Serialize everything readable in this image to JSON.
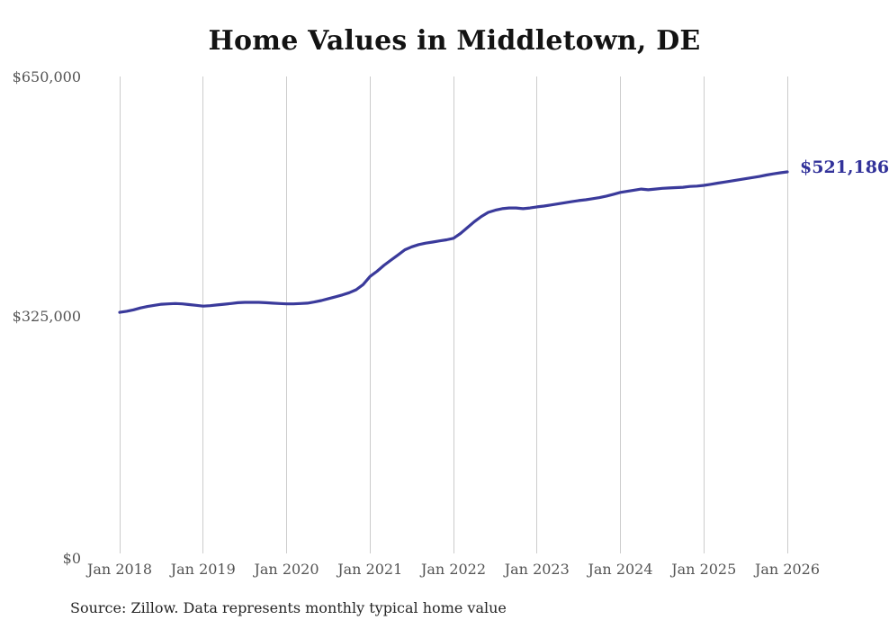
{
  "chart": {
    "title": "Home Values in Middletown, DE",
    "end_label": "$521,186",
    "source_note": "Source: Zillow. Data represents monthly typical home value",
    "colors": {
      "line": "#3a3a9b",
      "end_label_text": "#32329a",
      "grid": "#cccccc",
      "tick_text": "#545454",
      "title_text": "#131313",
      "source_text": "#262626",
      "background": "#ffffff"
    }
  },
  "chart_data": {
    "type": "line",
    "title": "Home Values in Middletown, DE",
    "series_name": "Monthly typical home value (Zillow)",
    "xlabel": "",
    "ylabel": "",
    "x_tick_labels": [
      "Jan 2018",
      "Jan 2019",
      "Jan 2020",
      "Jan 2021",
      "Jan 2022",
      "Jan 2023",
      "Jan 2024",
      "Jan 2025",
      "Jan 2026"
    ],
    "y_tick_labels": [
      "$0",
      "$325,000",
      "$650,000"
    ],
    "ylim": [
      0,
      650000
    ],
    "grid": "vertical-only",
    "legend": "none",
    "final_value": 521186,
    "final_value_label": "$521,186",
    "x": [
      "2018-01",
      "2018-02",
      "2018-03",
      "2018-04",
      "2018-05",
      "2018-06",
      "2018-07",
      "2018-08",
      "2018-09",
      "2018-10",
      "2018-11",
      "2018-12",
      "2019-01",
      "2019-02",
      "2019-03",
      "2019-04",
      "2019-05",
      "2019-06",
      "2019-07",
      "2019-08",
      "2019-09",
      "2019-10",
      "2019-11",
      "2019-12",
      "2020-01",
      "2020-02",
      "2020-03",
      "2020-04",
      "2020-05",
      "2020-06",
      "2020-07",
      "2020-08",
      "2020-09",
      "2020-10",
      "2020-11",
      "2020-12",
      "2021-01",
      "2021-02",
      "2021-03",
      "2021-04",
      "2021-05",
      "2021-06",
      "2021-07",
      "2021-08",
      "2021-09",
      "2021-10",
      "2021-11",
      "2021-12",
      "2022-01",
      "2022-02",
      "2022-03",
      "2022-04",
      "2022-05",
      "2022-06",
      "2022-07",
      "2022-08",
      "2022-09",
      "2022-10",
      "2022-11",
      "2022-12",
      "2023-01",
      "2023-02",
      "2023-03",
      "2023-04",
      "2023-05",
      "2023-06",
      "2023-07",
      "2023-08",
      "2023-09",
      "2023-10",
      "2023-11",
      "2023-12",
      "2024-01",
      "2024-02",
      "2024-03",
      "2024-04",
      "2024-05",
      "2024-06",
      "2024-07",
      "2024-08",
      "2024-09",
      "2024-10",
      "2024-11",
      "2024-12",
      "2025-01",
      "2025-02",
      "2025-03",
      "2025-04",
      "2025-05",
      "2025-06",
      "2025-07",
      "2025-08",
      "2025-09",
      "2025-10",
      "2025-11",
      "2025-12",
      "2026-01"
    ],
    "values": [
      331500,
      333000,
      335000,
      337500,
      339500,
      341000,
      342500,
      343000,
      343500,
      343000,
      342000,
      341000,
      340000,
      340500,
      341500,
      342500,
      343500,
      344500,
      345000,
      345000,
      345000,
      344500,
      344000,
      343500,
      343000,
      343000,
      343500,
      344000,
      345500,
      347500,
      350000,
      352500,
      355000,
      358000,
      362000,
      369000,
      380000,
      387000,
      395000,
      402000,
      409000,
      416000,
      420000,
      423000,
      425000,
      426500,
      428000,
      429500,
      431500,
      438000,
      446000,
      454000,
      461000,
      466500,
      469500,
      471500,
      472500,
      472500,
      471500,
      472500,
      474000,
      475000,
      476500,
      478000,
      479500,
      481000,
      482500,
      483500,
      485000,
      486500,
      488500,
      491000,
      493500,
      495000,
      496500,
      498000,
      497000,
      498000,
      499000,
      499500,
      500000,
      500500,
      501500,
      502000,
      503000,
      504500,
      506000,
      507500,
      509000,
      510500,
      512000,
      513500,
      515000,
      517000,
      518500,
      520000,
      521186
    ]
  }
}
